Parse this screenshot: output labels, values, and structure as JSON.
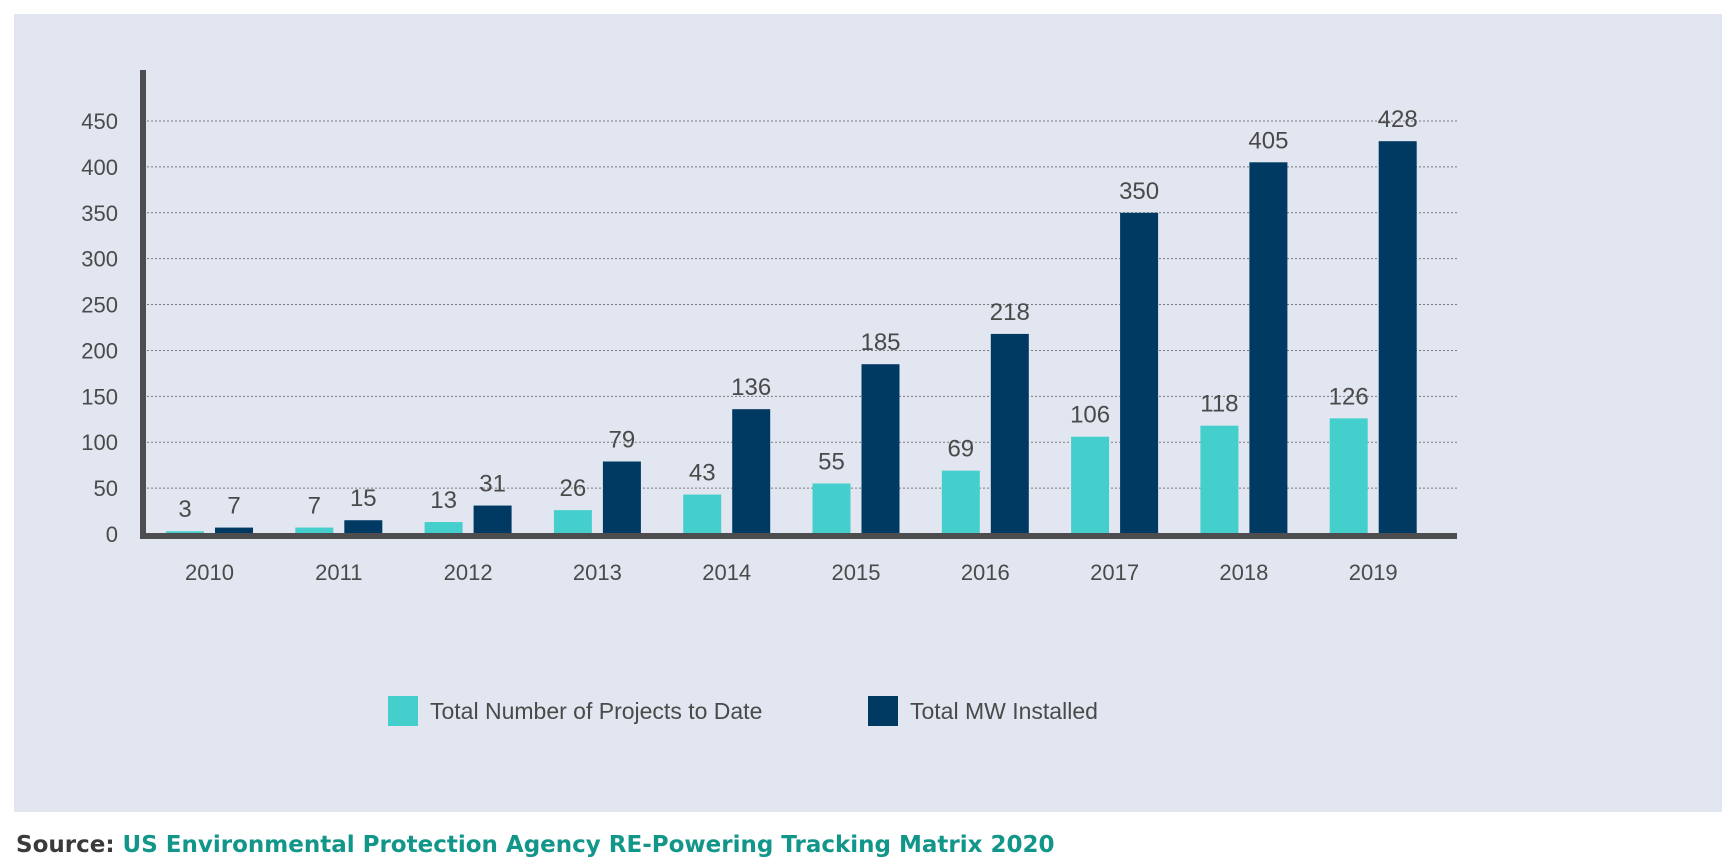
{
  "colors": {
    "series_projects": "#45cfcc",
    "series_mw": "#003a63",
    "axis": "#4d4d4f",
    "grid": "#7a7a7a",
    "background": "#e1e6f0",
    "source_text": "#12968a"
  },
  "chart_data": {
    "type": "bar",
    "title": "",
    "xlabel": "",
    "ylabel": "",
    "ylim": [
      0,
      500
    ],
    "yticks": [
      0,
      50,
      100,
      150,
      200,
      250,
      300,
      350,
      400,
      450
    ],
    "grid": true,
    "legend_position": "bottom",
    "categories": [
      "2010",
      "2011",
      "2012",
      "2013",
      "2014",
      "2015",
      "2016",
      "2017",
      "2018",
      "2019"
    ],
    "series": [
      {
        "name": "Total Number of Projects to Date",
        "values": [
          3,
          7,
          13,
          26,
          43,
          55,
          69,
          106,
          118,
          126
        ]
      },
      {
        "name": "Total MW Installed",
        "values": [
          7,
          15,
          31,
          79,
          136,
          185,
          218,
          350,
          405,
          428
        ]
      }
    ]
  },
  "legend": {
    "projects_label": "Total Number of Projects to Date",
    "mw_label": "Total MW Installed"
  },
  "source": {
    "label": "Source:",
    "text": "US Environmental Protection Agency RE-Powering Tracking Matrix 2020"
  }
}
